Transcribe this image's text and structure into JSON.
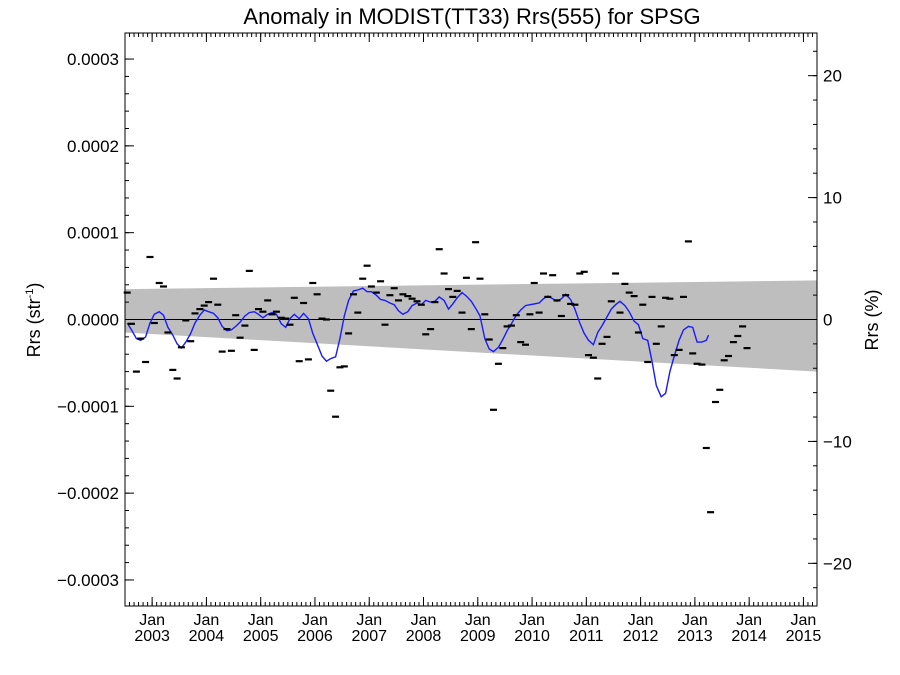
{
  "chart_data": {
    "type": "line",
    "title": "Anomaly in MODIST(TT33) Rrs(555) for SPSG",
    "ylabel_left": "Rrs (str",
    "ylabel_left_sup": "-1",
    "ylabel_left_close": ")",
    "ylabel_right": "Rrs (%)",
    "x_range": [
      2002.5,
      2015.25
    ],
    "y_range": [
      -0.00033,
      0.00033
    ],
    "y2_range": [
      -23.5,
      23.5
    ],
    "left_ticks": [
      {
        "v": 0.0003,
        "label": "0.0003"
      },
      {
        "v": 0.0002,
        "label": "0.0002"
      },
      {
        "v": 0.0001,
        "label": "0.0001"
      },
      {
        "v": 0.0,
        "label": "0.0000"
      },
      {
        "v": -0.0001,
        "label": "−0.0001"
      },
      {
        "v": -0.0002,
        "label": "−0.0002"
      },
      {
        "v": -0.0003,
        "label": "−0.0003"
      }
    ],
    "right_ticks": [
      {
        "v": 20,
        "label": "20"
      },
      {
        "v": 10,
        "label": "10"
      },
      {
        "v": 0,
        "label": "0"
      },
      {
        "v": -10,
        "label": "−10"
      },
      {
        "v": -20,
        "label": "−20"
      }
    ],
    "x_ticks": [
      {
        "x": 2003.0,
        "month": "Jan",
        "year": "2003"
      },
      {
        "x": 2004.0,
        "month": "Jan",
        "year": "2004"
      },
      {
        "x": 2005.0,
        "month": "Jan",
        "year": "2005"
      },
      {
        "x": 2006.0,
        "month": "Jan",
        "year": "2006"
      },
      {
        "x": 2007.0,
        "month": "Jan",
        "year": "2007"
      },
      {
        "x": 2008.0,
        "month": "Jan",
        "year": "2008"
      },
      {
        "x": 2009.0,
        "month": "Jan",
        "year": "2009"
      },
      {
        "x": 2010.0,
        "month": "Jan",
        "year": "2010"
      },
      {
        "x": 2011.0,
        "month": "Jan",
        "year": "2011"
      },
      {
        "x": 2012.0,
        "month": "Jan",
        "year": "2012"
      },
      {
        "x": 2013.0,
        "month": "Jan",
        "year": "2013"
      },
      {
        "x": 2014.0,
        "month": "Jan",
        "year": "2014"
      },
      {
        "x": 2015.0,
        "month": "Jan",
        "year": "2015"
      }
    ],
    "band": {
      "start": {
        "x": 2002.5,
        "upper": 3.5e-05,
        "lower": -1.5e-05
      },
      "end": {
        "x": 2015.25,
        "upper": 4.5e-05,
        "lower": -6e-05
      }
    },
    "points": [
      [
        2002.54,
        3.1e-05
      ],
      [
        2002.62,
        -5e-06
      ],
      [
        2002.71,
        -6e-05
      ],
      [
        2002.79,
        -2.2e-05
      ],
      [
        2002.88,
        -4.9e-05
      ],
      [
        2002.96,
        7.2e-05
      ],
      [
        2003.04,
        -4e-06
      ],
      [
        2003.13,
        4.2e-05
      ],
      [
        2003.21,
        3.8e-05
      ],
      [
        2003.29,
        -1.5e-05
      ],
      [
        2003.38,
        -5.8e-05
      ],
      [
        2003.46,
        -6.8e-05
      ],
      [
        2003.54,
        -3.2e-05
      ],
      [
        2003.62,
        -1e-06
      ],
      [
        2003.71,
        -2.5e-05
      ],
      [
        2003.79,
        7e-06
      ],
      [
        2003.88,
        1.2e-05
      ],
      [
        2003.96,
        1.6e-05
      ],
      [
        2004.04,
        2e-05
      ],
      [
        2004.13,
        4.7e-05
      ],
      [
        2004.21,
        1.7e-05
      ],
      [
        2004.29,
        -3.7e-05
      ],
      [
        2004.38,
        -1.1e-05
      ],
      [
        2004.46,
        -3.6e-05
      ],
      [
        2004.54,
        5e-06
      ],
      [
        2004.62,
        -2.1e-05
      ],
      [
        2004.71,
        -7e-06
      ],
      [
        2004.79,
        5.6e-05
      ],
      [
        2004.88,
        -3.5e-05
      ],
      [
        2004.96,
        1.2e-05
      ],
      [
        2005.04,
        9e-06
      ],
      [
        2005.13,
        2.2e-05
      ],
      [
        2005.21,
        6e-06
      ],
      [
        2005.29,
        9e-06
      ],
      [
        2005.38,
        2e-06
      ],
      [
        2005.46,
        1e-06
      ],
      [
        2005.54,
        -6e-06
      ],
      [
        2005.62,
        2.5e-05
      ],
      [
        2005.71,
        -4.8e-05
      ],
      [
        2005.79,
        1.9e-05
      ],
      [
        2005.88,
        -4.6e-05
      ],
      [
        2005.96,
        4.2e-05
      ],
      [
        2006.04,
        2.9e-05
      ],
      [
        2006.13,
        1e-06
      ],
      [
        2006.21,
        0.0
      ],
      [
        2006.29,
        -8.2e-05
      ],
      [
        2006.38,
        -0.000112
      ],
      [
        2006.46,
        -5.5e-05
      ],
      [
        2006.54,
        -5.4e-05
      ],
      [
        2006.62,
        -1.6e-05
      ],
      [
        2006.71,
        2.9e-05
      ],
      [
        2006.79,
        8e-06
      ],
      [
        2006.88,
        4.7e-05
      ],
      [
        2006.96,
        6.2e-05
      ],
      [
        2007.04,
        3.8e-05
      ],
      [
        2007.13,
        3.1e-05
      ],
      [
        2007.21,
        4.4e-05
      ],
      [
        2007.29,
        -6e-06
      ],
      [
        2007.38,
        2.8e-05
      ],
      [
        2007.46,
        3.6e-05
      ],
      [
        2007.54,
        2.2e-05
      ],
      [
        2007.62,
        2.9e-05
      ],
      [
        2007.71,
        2.7e-05
      ],
      [
        2007.79,
        2.4e-05
      ],
      [
        2007.88,
        2.1e-05
      ],
      [
        2007.96,
        1.7e-05
      ],
      [
        2008.04,
        -1.7e-05
      ],
      [
        2008.13,
        -1.1e-05
      ],
      [
        2008.21,
        2e-05
      ],
      [
        2008.29,
        8.1e-05
      ],
      [
        2008.38,
        5.3e-05
      ],
      [
        2008.46,
        3.5e-05
      ],
      [
        2008.54,
        2.6e-05
      ],
      [
        2008.62,
        3.3e-05
      ],
      [
        2008.71,
        8e-06
      ],
      [
        2008.79,
        4.8e-05
      ],
      [
        2008.88,
        -1.1e-05
      ],
      [
        2008.96,
        8.9e-05
      ],
      [
        2009.04,
        4.7e-05
      ],
      [
        2009.13,
        6e-06
      ],
      [
        2009.21,
        -2.3e-05
      ],
      [
        2009.29,
        -0.000104
      ],
      [
        2009.38,
        -5.1e-05
      ],
      [
        2009.46,
        -3.3e-05
      ],
      [
        2009.54,
        -8e-06
      ],
      [
        2009.62,
        -7e-06
      ],
      [
        2009.71,
        5e-06
      ],
      [
        2009.79,
        -2.6e-05
      ],
      [
        2009.88,
        -2.9e-05
      ],
      [
        2009.96,
        6e-06
      ],
      [
        2010.04,
        4.2e-05
      ],
      [
        2010.13,
        8e-06
      ],
      [
        2010.21,
        5.3e-05
      ],
      [
        2010.29,
        2.6e-05
      ],
      [
        2010.38,
        5.1e-05
      ],
      [
        2010.46,
        2.2e-05
      ],
      [
        2010.54,
        4e-06
      ],
      [
        2010.62,
        2.8e-05
      ],
      [
        2010.71,
        1.8e-05
      ],
      [
        2010.79,
        1.7e-05
      ],
      [
        2010.88,
        5.3e-05
      ],
      [
        2010.96,
        5.5e-05
      ],
      [
        2011.04,
        -4.1e-05
      ],
      [
        2011.13,
        -4.4e-05
      ],
      [
        2011.21,
        -6.8e-05
      ],
      [
        2011.29,
        -2.8e-05
      ],
      [
        2011.38,
        -2e-05
      ],
      [
        2011.46,
        2.1e-05
      ],
      [
        2011.54,
        5.3e-05
      ],
      [
        2011.62,
        8e-06
      ],
      [
        2011.71,
        4.1e-05
      ],
      [
        2011.79,
        3.1e-05
      ],
      [
        2011.88,
        2.7e-05
      ],
      [
        2011.96,
        -1.5e-05
      ],
      [
        2012.04,
        1.7e-05
      ],
      [
        2012.13,
        -4.9e-05
      ],
      [
        2012.21,
        2.6e-05
      ],
      [
        2012.29,
        -2.8e-05
      ],
      [
        2012.38,
        -8e-06
      ],
      [
        2012.46,
        2.5e-05
      ],
      [
        2012.54,
        2.4e-05
      ],
      [
        2012.62,
        -4.1e-05
      ],
      [
        2012.71,
        -3.5e-05
      ],
      [
        2012.79,
        2.6e-05
      ],
      [
        2012.88,
        9e-05
      ],
      [
        2012.96,
        -3.9e-05
      ],
      [
        2013.04,
        -5.1e-05
      ],
      [
        2013.13,
        -5.2e-05
      ],
      [
        2013.21,
        -0.000148
      ],
      [
        2013.29,
        -0.000222
      ],
      [
        2013.38,
        -9.5e-05
      ],
      [
        2013.46,
        -8.1e-05
      ],
      [
        2013.54,
        -4.7e-05
      ],
      [
        2013.62,
        -4.2e-05
      ],
      [
        2013.71,
        -2.6e-05
      ],
      [
        2013.79,
        -1.9e-05
      ],
      [
        2013.88,
        -8e-06
      ],
      [
        2013.96,
        -3.3e-05
      ]
    ],
    "smoothed": [
      [
        2002.54,
        -4e-06
      ],
      [
        2002.62,
        -1.2e-05
      ],
      [
        2002.71,
        -2.2e-05
      ],
      [
        2002.79,
        -2.4e-05
      ],
      [
        2002.88,
        -2e-05
      ],
      [
        2002.96,
        -4e-06
      ],
      [
        2003.04,
        6e-06
      ],
      [
        2003.13,
        9e-06
      ],
      [
        2003.21,
        5e-06
      ],
      [
        2003.29,
        -9e-06
      ],
      [
        2003.38,
        -1.8e-05
      ],
      [
        2003.46,
        -2.8e-05
      ],
      [
        2003.54,
        -3.3e-05
      ],
      [
        2003.62,
        -2.6e-05
      ],
      [
        2003.71,
        -1.6e-05
      ],
      [
        2003.79,
        -4e-06
      ],
      [
        2003.88,
        5e-06
      ],
      [
        2003.96,
        1.1e-05
      ],
      [
        2004.04,
        9e-06
      ],
      [
        2004.13,
        7e-06
      ],
      [
        2004.21,
        2e-06
      ],
      [
        2004.29,
        -8e-06
      ],
      [
        2004.38,
        -1.3e-05
      ],
      [
        2004.46,
        -1.2e-05
      ],
      [
        2004.54,
        -8e-06
      ],
      [
        2004.62,
        -3e-06
      ],
      [
        2004.71,
        4e-06
      ],
      [
        2004.79,
        8e-06
      ],
      [
        2004.88,
        9e-06
      ],
      [
        2004.96,
        6e-06
      ],
      [
        2005.04,
        2e-06
      ],
      [
        2005.13,
        6e-06
      ],
      [
        2005.21,
        8e-06
      ],
      [
        2005.29,
        6e-06
      ],
      [
        2005.38,
        -5e-06
      ],
      [
        2005.46,
        -9e-06
      ],
      [
        2005.54,
        1e-06
      ],
      [
        2005.62,
        6e-06
      ],
      [
        2005.71,
        1e-06
      ],
      [
        2005.79,
        7e-06
      ],
      [
        2005.88,
        1e-06
      ],
      [
        2005.96,
        -1.6e-05
      ],
      [
        2006.04,
        -2.8e-05
      ],
      [
        2006.13,
        -4.2e-05
      ],
      [
        2006.21,
        -4.8e-05
      ],
      [
        2006.29,
        -4.5e-05
      ],
      [
        2006.38,
        -4.3e-05
      ],
      [
        2006.46,
        -2.2e-05
      ],
      [
        2006.54,
        4e-06
      ],
      [
        2006.62,
        2.2e-05
      ],
      [
        2006.71,
        3.3e-05
      ],
      [
        2006.79,
        3.4e-05
      ],
      [
        2006.88,
        3.6e-05
      ],
      [
        2006.96,
        3.2e-05
      ],
      [
        2007.04,
        3.2e-05
      ],
      [
        2007.13,
        2.8e-05
      ],
      [
        2007.21,
        2.3e-05
      ],
      [
        2007.29,
        2.2e-05
      ],
      [
        2007.38,
        1.9e-05
      ],
      [
        2007.46,
        1.7e-05
      ],
      [
        2007.54,
        1e-05
      ],
      [
        2007.62,
        6e-06
      ],
      [
        2007.71,
        9e-06
      ],
      [
        2007.79,
        1.6e-05
      ],
      [
        2007.88,
        1.9e-05
      ],
      [
        2007.96,
        1.7e-05
      ],
      [
        2008.04,
        2.2e-05
      ],
      [
        2008.13,
        2e-05
      ],
      [
        2008.21,
        2.1e-05
      ],
      [
        2008.29,
        2.6e-05
      ],
      [
        2008.38,
        2.2e-05
      ],
      [
        2008.46,
        1.2e-05
      ],
      [
        2008.54,
        1.8e-05
      ],
      [
        2008.62,
        2.5e-05
      ],
      [
        2008.71,
        3.1e-05
      ],
      [
        2008.79,
        2.7e-05
      ],
      [
        2008.88,
        2.1e-05
      ],
      [
        2008.96,
        1.3e-05
      ],
      [
        2009.04,
        4e-06
      ],
      [
        2009.13,
        -2.2e-05
      ],
      [
        2009.21,
        -3.4e-05
      ],
      [
        2009.29,
        -3.7e-05
      ],
      [
        2009.38,
        -3.2e-05
      ],
      [
        2009.46,
        -2.3e-05
      ],
      [
        2009.54,
        -1.3e-05
      ],
      [
        2009.62,
        -5e-06
      ],
      [
        2009.71,
        5e-06
      ],
      [
        2009.79,
        1.1e-05
      ],
      [
        2009.88,
        1.6e-05
      ],
      [
        2009.96,
        1.7e-05
      ],
      [
        2010.04,
        1.8e-05
      ],
      [
        2010.13,
        1.9e-05
      ],
      [
        2010.21,
        2.4e-05
      ],
      [
        2010.29,
        2.7e-05
      ],
      [
        2010.38,
        2.4e-05
      ],
      [
        2010.46,
        2.1e-05
      ],
      [
        2010.54,
        2.4e-05
      ],
      [
        2010.62,
        2.9e-05
      ],
      [
        2010.71,
        2.3e-05
      ],
      [
        2010.79,
        1.2e-05
      ],
      [
        2010.88,
        -4e-06
      ],
      [
        2010.96,
        -1.6e-05
      ],
      [
        2011.04,
        -2.4e-05
      ],
      [
        2011.13,
        -2.9e-05
      ],
      [
        2011.21,
        -1.5e-05
      ],
      [
        2011.29,
        -7e-06
      ],
      [
        2011.38,
        3e-06
      ],
      [
        2011.46,
        1.2e-05
      ],
      [
        2011.54,
        1.7e-05
      ],
      [
        2011.62,
        2.1e-05
      ],
      [
        2011.71,
        1.6e-05
      ],
      [
        2011.79,
        9e-06
      ],
      [
        2011.88,
        -2e-06
      ],
      [
        2011.96,
        -6e-06
      ],
      [
        2012.04,
        -2.2e-05
      ],
      [
        2012.13,
        -2.4e-05
      ],
      [
        2012.21,
        -4.8e-05
      ],
      [
        2012.29,
        -7.6e-05
      ],
      [
        2012.38,
        -8.9e-05
      ],
      [
        2012.46,
        -8.5e-05
      ],
      [
        2012.54,
        -6e-05
      ],
      [
        2012.62,
        -4.2e-05
      ],
      [
        2012.71,
        -2.4e-05
      ],
      [
        2012.79,
        -1.2e-05
      ],
      [
        2012.88,
        -8e-06
      ],
      [
        2012.96,
        -9e-06
      ],
      [
        2013.04,
        -2.6e-05
      ],
      [
        2013.13,
        -2.6e-05
      ],
      [
        2013.21,
        -2.4e-05
      ],
      [
        2013.25,
        -1.8e-05
      ]
    ]
  }
}
